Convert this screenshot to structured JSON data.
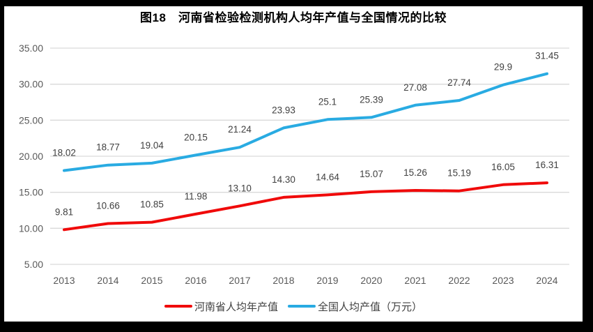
{
  "title": "图18　河南省检验检测机构人均年产值与全国情况的比较",
  "colors": {
    "henan": "#F00A0A",
    "national": "#29ABE2",
    "grid": "#D9D9D9",
    "axis_text": "#595959",
    "label_text": "#404040",
    "title_text": "#000000",
    "background": "#FFFFFF",
    "frame": "#000000"
  },
  "chart_data": {
    "type": "line",
    "title": "图18　河南省检验检测机构人均年产值与全国情况的比较",
    "categories": [
      "2013",
      "2014",
      "2015",
      "2016",
      "2017",
      "2018",
      "2019",
      "2020",
      "2021",
      "2022",
      "2023",
      "2024"
    ],
    "series": [
      {
        "key": "henan",
        "name": "河南省人均年产值",
        "values": [
          9.81,
          10.66,
          10.85,
          11.98,
          13.1,
          14.3,
          14.64,
          15.07,
          15.26,
          15.19,
          16.05,
          16.31
        ],
        "labels": [
          "9.81",
          "10.66",
          "10.85",
          "11.98",
          "13.10",
          "14.30",
          "14.64",
          "15.07",
          "15.26",
          "15.19",
          "16.05",
          "16.31"
        ]
      },
      {
        "key": "national",
        "name": "全国人均产值（万元）",
        "values": [
          18.02,
          18.77,
          19.04,
          20.15,
          21.24,
          23.93,
          25.1,
          25.39,
          27.08,
          27.74,
          29.9,
          31.45
        ],
        "labels": [
          "18.02",
          "18.77",
          "19.04",
          "20.15",
          "21.24",
          "23.93",
          "25.1",
          "25.39",
          "27.08",
          "27.74",
          "29.9",
          "31.45"
        ]
      }
    ],
    "xlabel": "",
    "ylabel": "",
    "ylim": [
      5,
      35
    ],
    "ytick_step": 5,
    "yticks": [
      "35.00",
      "30.00",
      "25.00",
      "20.00",
      "15.00",
      "10.00",
      "5.00"
    ],
    "grid": true,
    "legend_position": "bottom",
    "data_labels": true
  }
}
